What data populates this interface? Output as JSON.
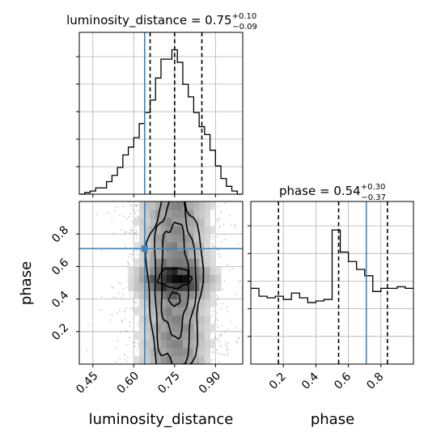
{
  "chart_data": {
    "type": "corner",
    "parameters": [
      "luminosity_distance",
      "phase"
    ],
    "truths": {
      "luminosity_distance": 0.64,
      "phase": 0.71
    },
    "panels": [
      {
        "kind": "histogram",
        "parameter": "luminosity_distance",
        "title": {
          "prefix": "luminosity_distance = ",
          "value": "0.75",
          "plus": "+0.10",
          "minus": "−0.09"
        },
        "xlim": [
          0.4,
          1.0
        ],
        "ylim": [
          0,
          1
        ],
        "y_tick_labels_shown": false,
        "quantiles": [
          0.66,
          0.75,
          0.85
        ],
        "truth": 0.64,
        "bins": [
          {
            "x0": 0.4,
            "x1": 0.42,
            "y": 0.0
          },
          {
            "x0": 0.42,
            "x1": 0.44,
            "y": 0.01
          },
          {
            "x0": 0.44,
            "x1": 0.46,
            "y": 0.02
          },
          {
            "x0": 0.46,
            "x1": 0.48,
            "y": 0.04
          },
          {
            "x0": 0.48,
            "x1": 0.5,
            "y": 0.04
          },
          {
            "x0": 0.5,
            "x1": 0.52,
            "y": 0.08
          },
          {
            "x0": 0.52,
            "x1": 0.54,
            "y": 0.12
          },
          {
            "x0": 0.54,
            "x1": 0.56,
            "y": 0.17
          },
          {
            "x0": 0.56,
            "x1": 0.58,
            "y": 0.25
          },
          {
            "x0": 0.58,
            "x1": 0.6,
            "y": 0.3
          },
          {
            "x0": 0.6,
            "x1": 0.62,
            "y": 0.36
          },
          {
            "x0": 0.62,
            "x1": 0.64,
            "y": 0.45
          },
          {
            "x0": 0.64,
            "x1": 0.66,
            "y": 0.52
          },
          {
            "x0": 0.66,
            "x1": 0.68,
            "y": 0.6
          },
          {
            "x0": 0.68,
            "x1": 0.7,
            "y": 0.74
          },
          {
            "x0": 0.7,
            "x1": 0.72,
            "y": 0.86
          },
          {
            "x0": 0.72,
            "x1": 0.74,
            "y": 0.86
          },
          {
            "x0": 0.74,
            "x1": 0.76,
            "y": 0.92
          },
          {
            "x0": 0.76,
            "x1": 0.78,
            "y": 0.84
          },
          {
            "x0": 0.78,
            "x1": 0.8,
            "y": 0.7
          },
          {
            "x0": 0.8,
            "x1": 0.82,
            "y": 0.62
          },
          {
            "x0": 0.82,
            "x1": 0.84,
            "y": 0.52
          },
          {
            "x0": 0.84,
            "x1": 0.86,
            "y": 0.43
          },
          {
            "x0": 0.86,
            "x1": 0.88,
            "y": 0.38
          },
          {
            "x0": 0.88,
            "x1": 0.9,
            "y": 0.28
          },
          {
            "x0": 0.9,
            "x1": 0.92,
            "y": 0.18
          },
          {
            "x0": 0.92,
            "x1": 0.94,
            "y": 0.1
          },
          {
            "x0": 0.94,
            "x1": 0.96,
            "y": 0.05
          },
          {
            "x0": 0.96,
            "x1": 0.98,
            "y": 0.02
          },
          {
            "x0": 0.98,
            "x1": 1.0,
            "y": 0.0
          }
        ]
      },
      {
        "kind": "histogram",
        "parameter": "phase",
        "title": {
          "prefix": "phase = ",
          "value": "0.54",
          "plus": "+0.30",
          "minus": "−0.37"
        },
        "xlim": [
          0.0,
          1.0
        ],
        "ylim": [
          0,
          1
        ],
        "y_tick_labels_shown": false,
        "quantiles": [
          0.17,
          0.54,
          0.84
        ],
        "truth": 0.71,
        "xticks": [
          0.2,
          0.4,
          0.6,
          0.8
        ],
        "xtick_labels": [
          "0.2",
          "0.4",
          "0.6",
          "0.8"
        ],
        "xlabel": "phase",
        "bins": [
          {
            "x0": 0.0,
            "x1": 0.05,
            "y": 0.48
          },
          {
            "x0": 0.05,
            "x1": 0.1,
            "y": 0.43
          },
          {
            "x0": 0.1,
            "x1": 0.15,
            "y": 0.42
          },
          {
            "x0": 0.15,
            "x1": 0.2,
            "y": 0.43
          },
          {
            "x0": 0.2,
            "x1": 0.25,
            "y": 0.41
          },
          {
            "x0": 0.25,
            "x1": 0.3,
            "y": 0.45
          },
          {
            "x0": 0.3,
            "x1": 0.35,
            "y": 0.42
          },
          {
            "x0": 0.35,
            "x1": 0.4,
            "y": 0.39
          },
          {
            "x0": 0.4,
            "x1": 0.45,
            "y": 0.4
          },
          {
            "x0": 0.45,
            "x1": 0.5,
            "y": 0.41
          },
          {
            "x0": 0.5,
            "x1": 0.55,
            "y": 0.85
          },
          {
            "x0": 0.55,
            "x1": 0.6,
            "y": 0.71
          },
          {
            "x0": 0.6,
            "x1": 0.65,
            "y": 0.65
          },
          {
            "x0": 0.65,
            "x1": 0.7,
            "y": 0.6
          },
          {
            "x0": 0.7,
            "x1": 0.75,
            "y": 0.56
          },
          {
            "x0": 0.75,
            "x1": 0.8,
            "y": 0.46
          },
          {
            "x0": 0.8,
            "x1": 0.85,
            "y": 0.48
          },
          {
            "x0": 0.85,
            "x1": 0.9,
            "y": 0.48
          },
          {
            "x0": 0.9,
            "x1": 0.95,
            "y": 0.49
          },
          {
            "x0": 0.95,
            "x1": 1.0,
            "y": 0.48
          }
        ]
      },
      {
        "kind": "2d-density",
        "x_parameter": "luminosity_distance",
        "y_parameter": "phase",
        "xlim": [
          0.4,
          1.0
        ],
        "ylim": [
          0.0,
          1.0
        ],
        "xticks": [
          0.45,
          0.6,
          0.75,
          0.9
        ],
        "xtick_labels": [
          "0.45",
          "0.60",
          "0.75",
          "0.90"
        ],
        "yticks": [
          0.2,
          0.4,
          0.6,
          0.8
        ],
        "ytick_labels": [
          "0.2",
          "0.4",
          "0.6",
          "0.8"
        ],
        "xlabel": "luminosity_distance",
        "ylabel": "phase",
        "truth_point": [
          0.64,
          0.71
        ],
        "grid": true,
        "density_peak": [
          0.74,
          0.51
        ]
      }
    ]
  }
}
